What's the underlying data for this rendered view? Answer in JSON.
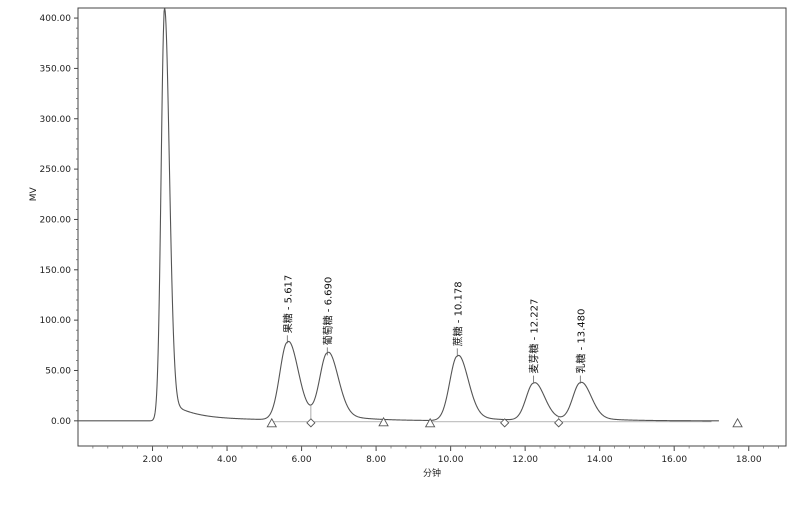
{
  "chart_data": {
    "type": "line",
    "title": "",
    "xlabel": "分钟",
    "ylabel": "MV",
    "xlim": [
      0,
      19
    ],
    "ylim": [
      -25,
      410
    ],
    "x_ticks": [
      2.0,
      4.0,
      6.0,
      8.0,
      10.0,
      12.0,
      14.0,
      16.0,
      18.0
    ],
    "x_tick_labels": [
      "2.00",
      "4.00",
      "6.00",
      "8.00",
      "10.00",
      "12.00",
      "14.00",
      "16.00",
      "18.00"
    ],
    "y_ticks": [
      0,
      50,
      100,
      150,
      200,
      250,
      300,
      350,
      400
    ],
    "y_tick_labels": [
      "0.00",
      "50.00",
      "100.00",
      "150.00",
      "200.00",
      "250.00",
      "300.00",
      "350.00",
      "400.00"
    ],
    "grid": false,
    "series": [
      {
        "color": "#555555",
        "peaks": [
          {
            "rt": 2.32,
            "height": 405
          },
          {
            "rt": 5.617,
            "height": 77
          },
          {
            "rt": 6.69,
            "height": 65
          },
          {
            "rt": 10.178,
            "height": 64
          },
          {
            "rt": 12.227,
            "height": 37
          },
          {
            "rt": 13.48,
            "height": 37
          }
        ],
        "x_end": 17.2
      }
    ],
    "annotations": [
      {
        "label": "果糖 - 5.617",
        "x": 5.617,
        "y": 77
      },
      {
        "label": "葡萄糖 - 6.690",
        "x": 6.69,
        "y": 65
      },
      {
        "label": "蔗糖 - 10.178",
        "x": 10.178,
        "y": 64
      },
      {
        "label": "麦芽糖 - 12.227",
        "x": 12.227,
        "y": 37
      },
      {
        "label": "乳糖 - 13.480",
        "x": 13.48,
        "y": 37
      }
    ],
    "markers": [
      {
        "x": 5.2,
        "y": -2,
        "shape": "triangle"
      },
      {
        "x": 6.25,
        "y": -2,
        "shape": "diamond"
      },
      {
        "x": 8.2,
        "y": -1,
        "shape": "triangle"
      },
      {
        "x": 9.45,
        "y": -2,
        "shape": "triangle"
      },
      {
        "x": 11.45,
        "y": -2,
        "shape": "diamond"
      },
      {
        "x": 12.9,
        "y": -2,
        "shape": "diamond"
      },
      {
        "x": 17.7,
        "y": -2,
        "shape": "triangle"
      }
    ]
  }
}
